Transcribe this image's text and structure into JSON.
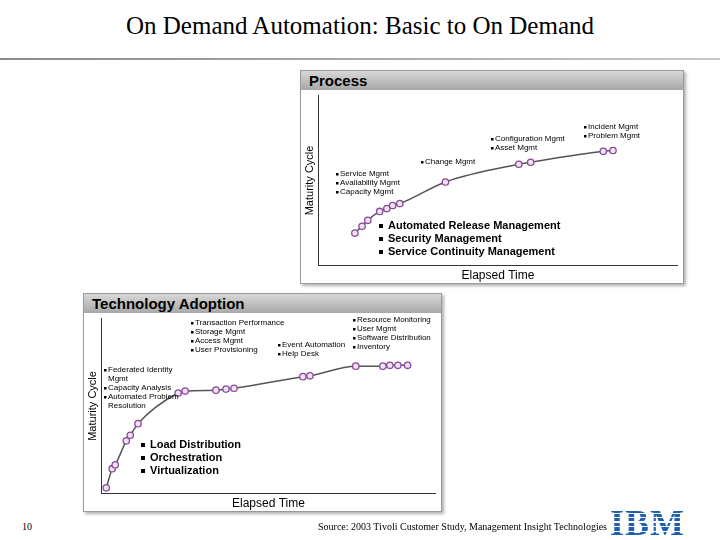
{
  "header": {
    "title": "On Demand Automation: Basic to On Demand"
  },
  "chart_data": [
    {
      "type": "line",
      "title": "Process",
      "x_label": "Elapsed Time",
      "y_label": "Maturity Cycle",
      "x": [
        10.2,
        12.2,
        13.8,
        17.1,
        19.1,
        20.7,
        22.7,
        35.4,
        55.8,
        59.1,
        79.3,
        82.0
      ],
      "values": [
        19.1,
        23.1,
        26.6,
        31.8,
        33.5,
        35.3,
        36.4,
        49.1,
        59.5,
        60.7,
        67.1,
        67.6
      ],
      "xlim": [
        0,
        100
      ],
      "ylim": [
        0,
        100
      ],
      "tick_labels": false,
      "grid": false,
      "color": "#8a4a9a",
      "marker": "circle",
      "annotations": [
        [
          "Incident Mgmt",
          "Problem Mgmt"
        ],
        [
          "Configuration Mgmt",
          "Asset Mgmt"
        ],
        [
          "Change Mgmt"
        ],
        [
          "Service Mgmt",
          "Availability Mgmt",
          "Capacity Mgmt"
        ]
      ],
      "key_points": [
        "Automated Release Management",
        "Security Management",
        "Service Continuity Management"
      ]
    },
    {
      "type": "line",
      "title": "Technology Adoption",
      "x_label": "Elapsed Time",
      "y_label": "Maturity Cycle",
      "x": [
        1.5,
        3.3,
        4.2,
        7.5,
        8.7,
        11.0,
        23.0,
        25.1,
        34.3,
        37.3,
        39.7,
        60.3,
        62.4,
        76.1,
        84.2,
        86.3,
        88.7,
        91.6
      ],
      "values": [
        3.3,
        14.2,
        16.4,
        30.1,
        33.3,
        39.9,
        57.4,
        58.5,
        59.0,
        59.6,
        60.1,
        66.7,
        67.2,
        72.7,
        72.7,
        73.2,
        73.2,
        73.2
      ],
      "xlim": [
        0,
        100
      ],
      "ylim": [
        0,
        100
      ],
      "tick_labels": false,
      "grid": false,
      "color": "#8a4a9a",
      "marker": "circle",
      "annotations": [
        [
          "Transaction Performance",
          "Storage Mgmt",
          "Access Mgmt",
          "User Provisioning"
        ],
        [
          "Resource Monitoring",
          "User Mgmt",
          "Software Distribution",
          "Inventory"
        ],
        [
          "Event Automation",
          "Help Desk"
        ],
        [
          "Federated Identity Mgmt",
          "Capacity Analysis",
          "Automated Problem Resolution"
        ]
      ],
      "key_points": [
        "Load Distribution",
        "Orchestration",
        "Virtualization"
      ]
    }
  ],
  "footer": {
    "page": "10",
    "source": "Source:  2003 Tivoli Customer Study, Management Insight Technologies",
    "logo": "IBM"
  }
}
